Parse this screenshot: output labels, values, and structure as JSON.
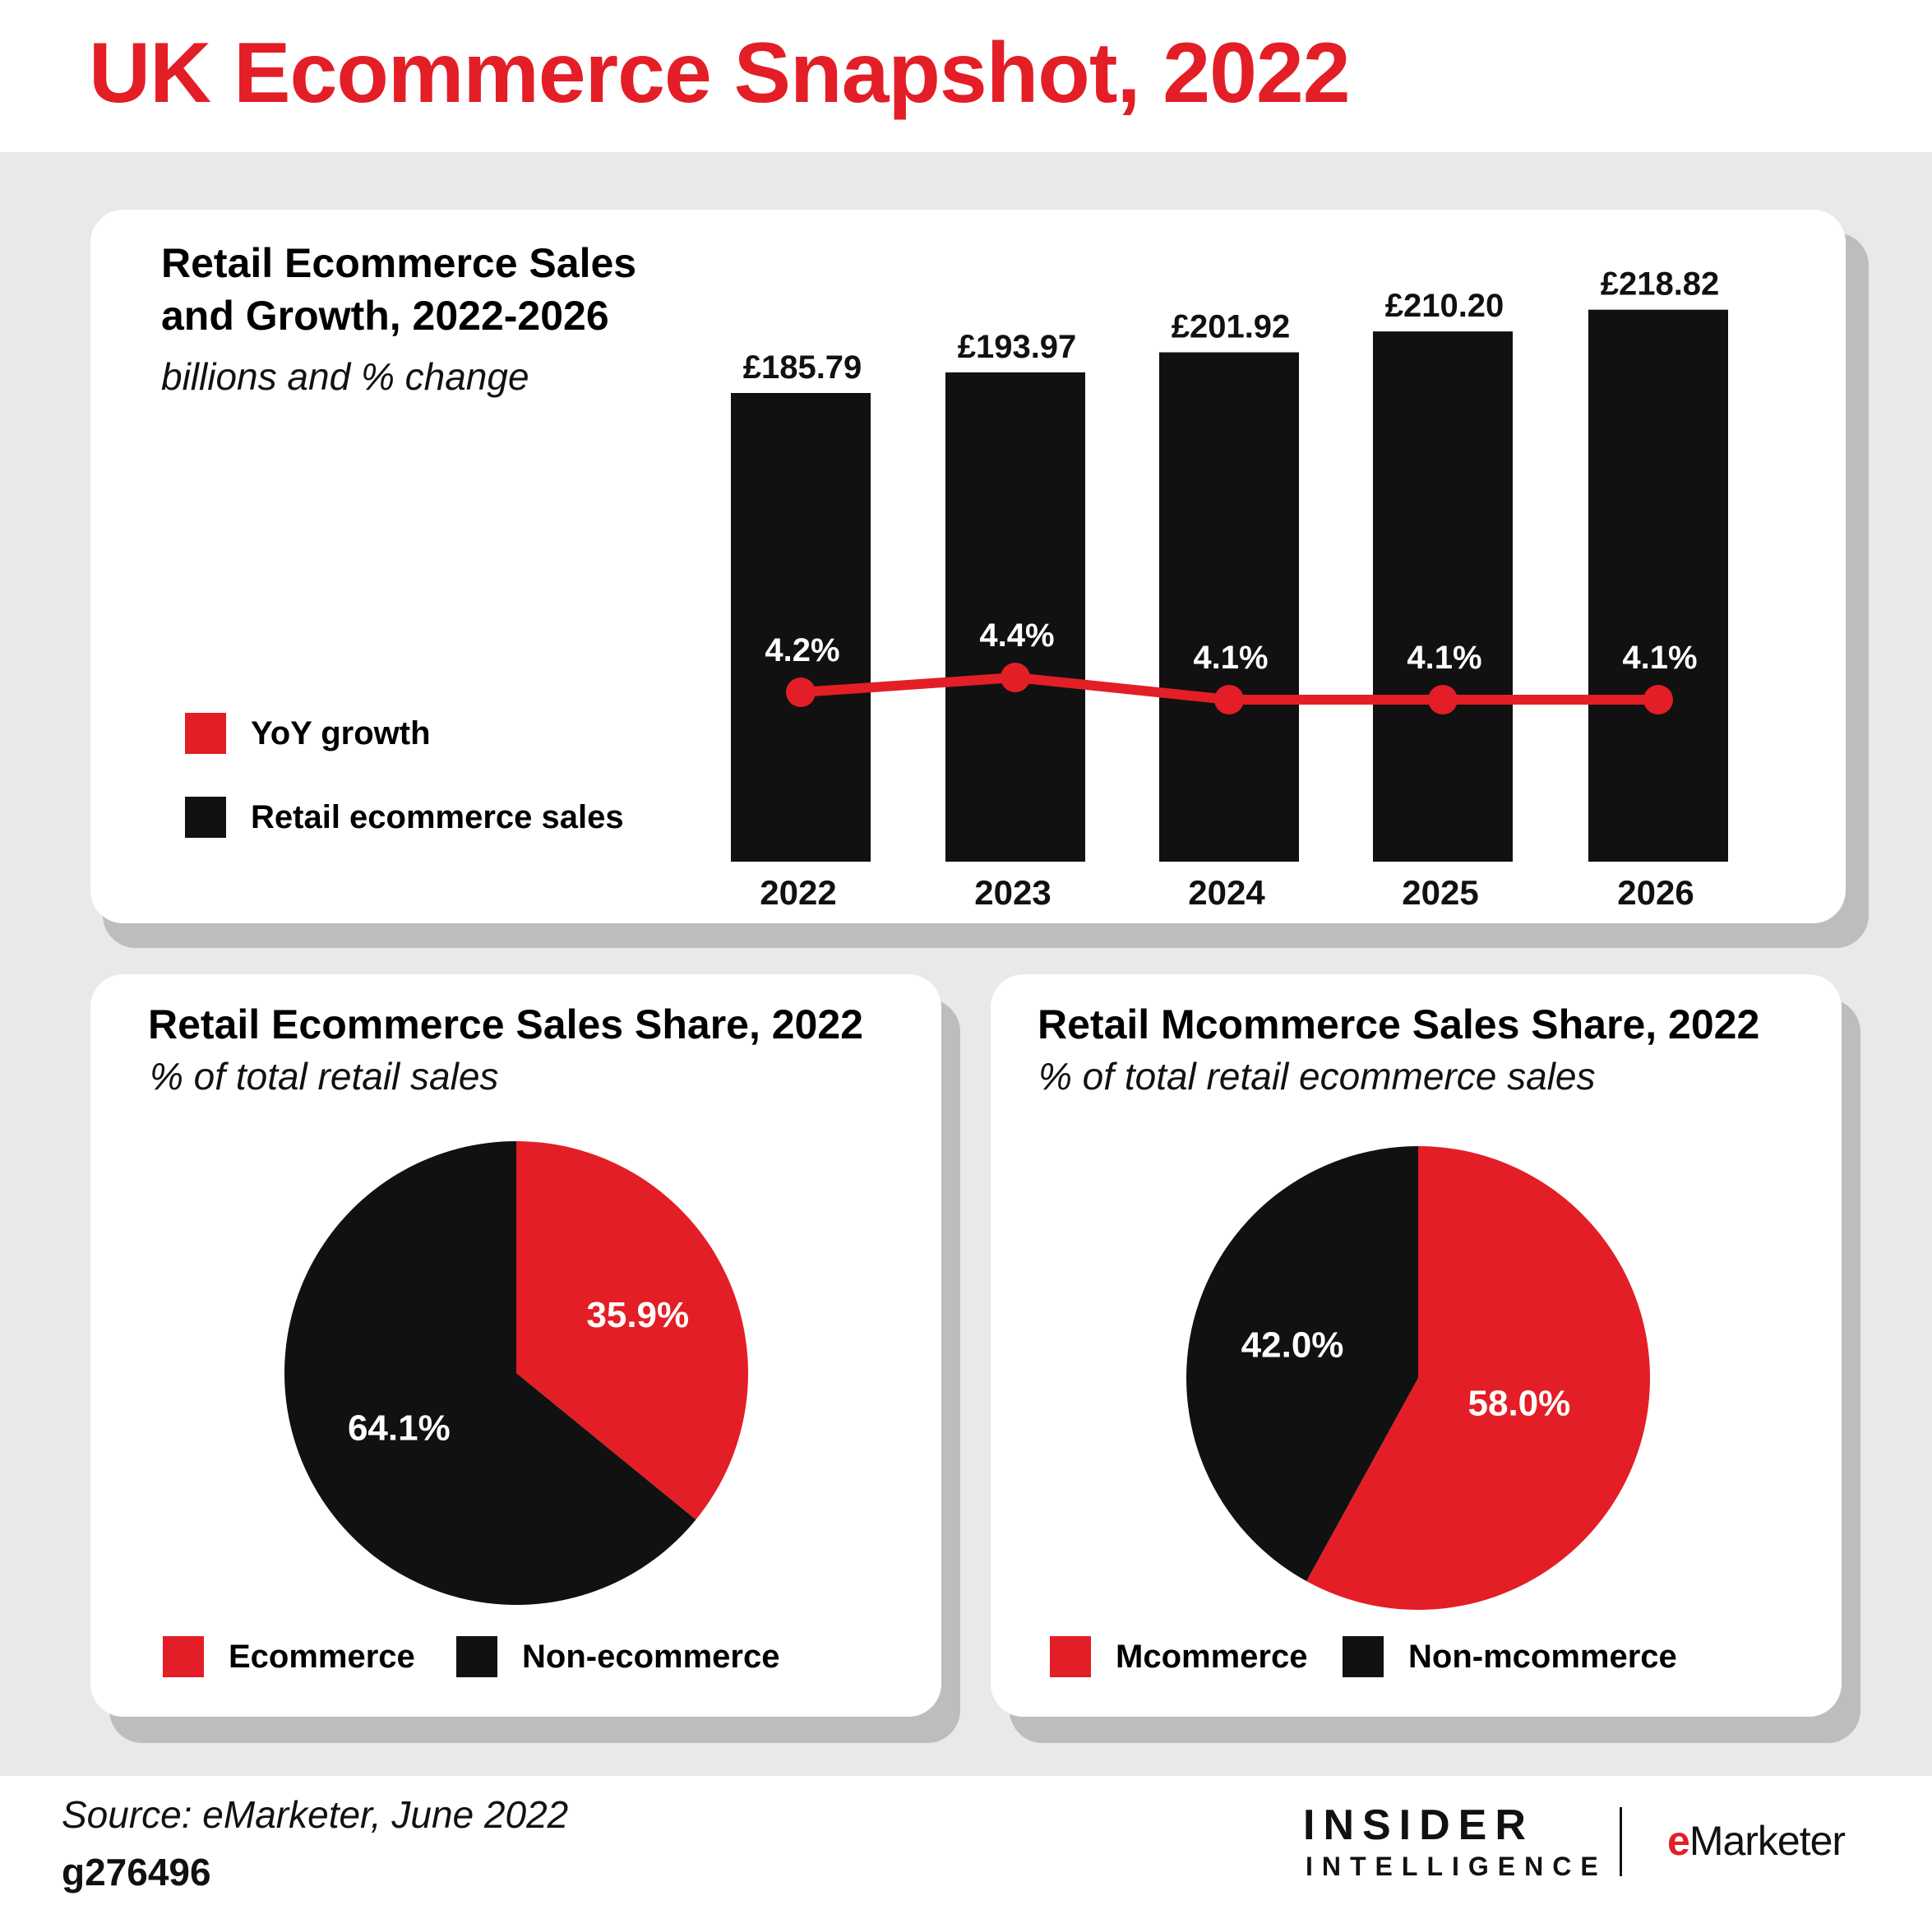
{
  "page_title": "UK Ecommerce Snapshot, 2022",
  "colors": {
    "accent_red": "#e31e26",
    "bar_black": "#111111",
    "band_gray": "#e9e9e9"
  },
  "bar_card": {
    "title_line1": "Retail Ecommerce Sales",
    "title_line2": "and Growth, 2022-2026",
    "subtitle": "billions and % change",
    "legend": {
      "growth": "YoY growth",
      "sales": "Retail ecommerce sales"
    }
  },
  "pie_left": {
    "title": "Retail Ecommerce Sales Share, 2022",
    "subtitle": "% of total retail sales",
    "legend": [
      "Ecommerce",
      "Non-ecommerce"
    ]
  },
  "pie_right": {
    "title": "Retail Mcommerce Sales Share, 2022",
    "subtitle": "% of total retail ecommerce sales",
    "legend": [
      "Mcommerce",
      "Non-mcommerce"
    ]
  },
  "chart_data": [
    {
      "type": "bar",
      "categories": [
        "2022",
        "2023",
        "2024",
        "2025",
        "2026"
      ],
      "series": [
        {
          "name": "Retail ecommerce sales",
          "values": [
            185.79,
            193.97,
            201.92,
            210.2,
            218.82
          ],
          "labels": [
            "£185.79",
            "£193.97",
            "£201.92",
            "£210.20",
            "£218.82"
          ],
          "color": "#111111"
        },
        {
          "name": "YoY growth",
          "type": "line",
          "values": [
            4.2,
            4.4,
            4.1,
            4.1,
            4.1
          ],
          "labels": [
            "4.2%",
            "4.4%",
            "4.1%",
            "4.1%",
            "4.1%"
          ],
          "color": "#e31e26"
        }
      ],
      "title": "Retail Ecommerce Sales and Growth, 2022-2026",
      "subtitle": "billions and % change",
      "legend": "left"
    },
    {
      "type": "pie",
      "title": "Retail Ecommerce Sales Share, 2022",
      "subtitle": "% of total retail sales",
      "slices": [
        {
          "name": "Ecommerce",
          "value": 35.9,
          "label": "35.9%",
          "color": "#e31e26"
        },
        {
          "name": "Non-ecommerce",
          "value": 64.1,
          "label": "64.1%",
          "color": "#111111"
        }
      ]
    },
    {
      "type": "pie",
      "title": "Retail Mcommerce Sales Share, 2022",
      "subtitle": "% of total retail ecommerce sales",
      "slices": [
        {
          "name": "Mcommerce",
          "value": 58.0,
          "label": "58.0%",
          "color": "#e31e26"
        },
        {
          "name": "Non-mcommerce",
          "value": 42.0,
          "label": "42.0%",
          "color": "#111111"
        }
      ]
    }
  ],
  "footer": {
    "source": "Source: eMarketer, June 2022",
    "chart_id": "g276496",
    "logo_insider": "INSIDER",
    "logo_intelligence": "INTELLIGENCE",
    "logo_emarketer_e": "e",
    "logo_emarketer_rest": "Marketer"
  }
}
